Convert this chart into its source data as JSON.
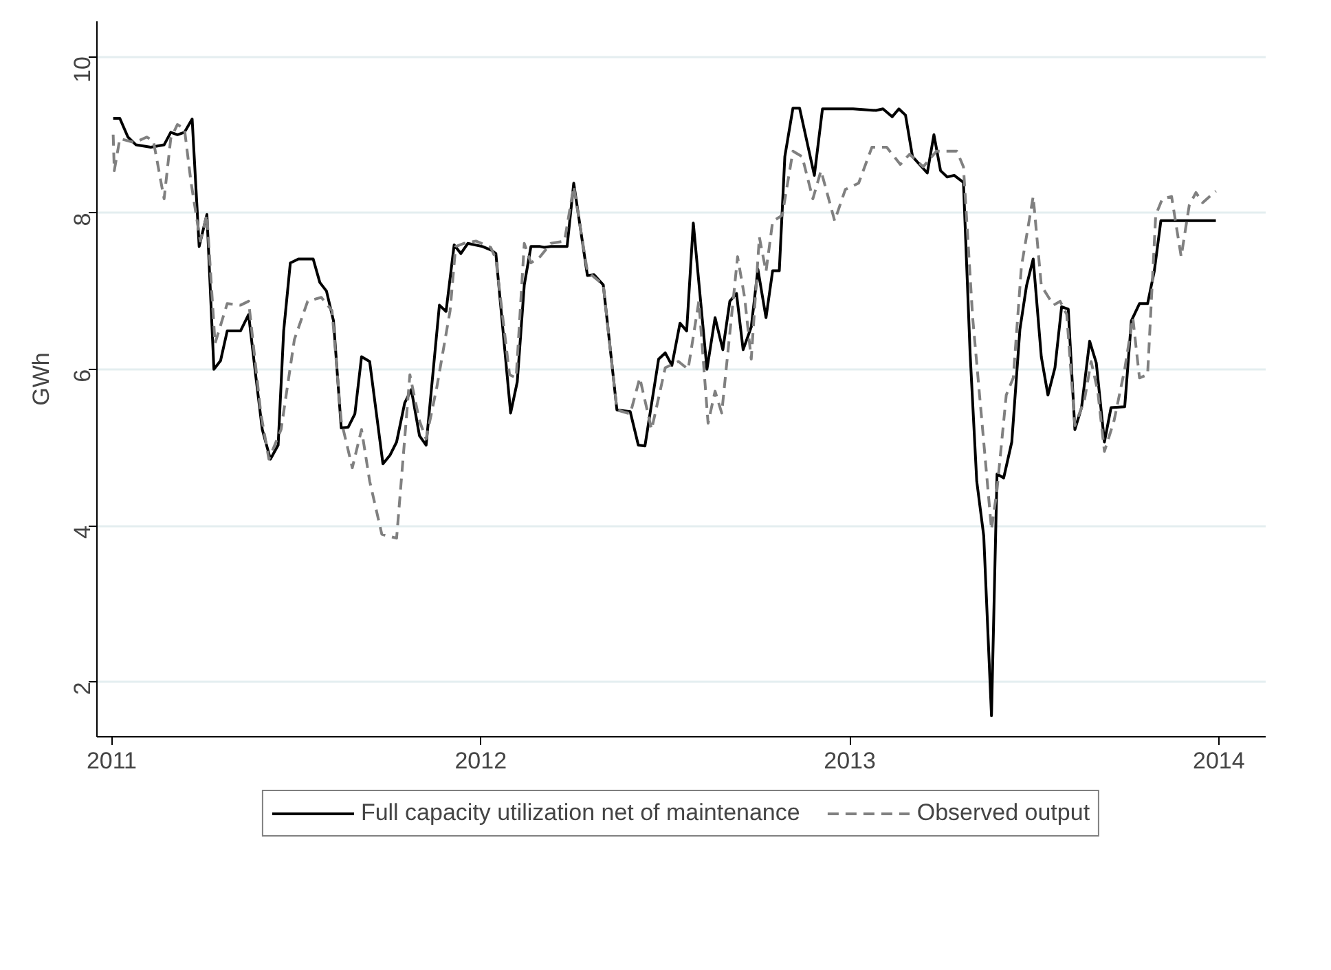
{
  "chart_data": {
    "type": "line",
    "ylabel": "GWh",
    "xlim": [
      2010.96,
      2014.127
    ],
    "ylim": [
      1.3,
      10.45
    ],
    "xticks": [
      2011,
      2012,
      2013,
      2014
    ],
    "yticks": [
      2,
      4,
      6,
      8,
      10
    ],
    "grid": "y",
    "legend": "bottom",
    "marker": "none",
    "series": [
      {
        "name": "Full capacity utilization net of maintenance",
        "color": "#000000",
        "line_style": "solid",
        "x": [
          2011.004,
          2011.022,
          2011.044,
          2011.066,
          2011.106,
          2011.142,
          2011.16,
          2011.178,
          2011.197,
          2011.218,
          2011.237,
          2011.258,
          2011.277,
          2011.295,
          2011.313,
          2011.349,
          2011.371,
          2011.39,
          2011.408,
          2011.43,
          2011.451,
          2011.466,
          2011.484,
          2011.506,
          2011.546,
          2011.564,
          2011.582,
          2011.601,
          2011.622,
          2011.641,
          2011.659,
          2011.677,
          2011.699,
          2011.735,
          2011.754,
          2011.772,
          2011.794,
          2011.812,
          2011.834,
          2011.852,
          2011.888,
          2011.906,
          2011.928,
          2011.946,
          2011.965,
          2012.005,
          2012.03,
          2012.041,
          2012.081,
          2012.099,
          2012.118,
          2012.136,
          2012.161,
          2012.172,
          2012.19,
          2012.234,
          2012.252,
          2012.289,
          2012.307,
          2012.332,
          2012.369,
          2012.405,
          2012.427,
          2012.445,
          2012.482,
          2012.5,
          2012.518,
          2012.54,
          2012.558,
          2012.576,
          2012.613,
          2012.635,
          2012.656,
          2012.675,
          2012.693,
          2012.711,
          2012.733,
          2012.751,
          2012.773,
          2012.791,
          2012.809,
          2012.824,
          2012.846,
          2012.864,
          2012.904,
          2012.926,
          2013.009,
          2013.071,
          2013.09,
          2013.115,
          2013.133,
          2013.151,
          2013.17,
          2013.21,
          2013.228,
          2013.246,
          2013.264,
          2013.283,
          2013.308,
          2013.326,
          2013.344,
          2013.363,
          2013.384,
          2013.399,
          2013.417,
          2013.439,
          2013.461,
          2013.479,
          2013.497,
          2013.519,
          2013.537,
          2013.556,
          2013.574,
          2013.592,
          2013.61,
          2013.628,
          2013.65,
          2013.668,
          2013.69,
          2013.708,
          2013.745,
          2013.763,
          2013.785,
          2013.807,
          2013.825,
          2013.843,
          2013.92,
          2013.992
        ],
        "values": [
          9.21,
          9.21,
          8.97,
          8.87,
          8.84,
          8.87,
          9.03,
          9.0,
          9.03,
          9.2,
          7.57,
          7.98,
          6.0,
          6.11,
          6.49,
          6.49,
          6.7,
          5.93,
          5.23,
          4.85,
          5.03,
          6.49,
          7.36,
          7.41,
          7.41,
          7.11,
          7.0,
          6.62,
          5.25,
          5.26,
          5.43,
          6.16,
          6.1,
          4.79,
          4.9,
          5.07,
          5.57,
          5.74,
          5.15,
          5.03,
          6.82,
          6.74,
          7.59,
          7.48,
          7.61,
          7.57,
          7.52,
          7.48,
          5.44,
          5.84,
          7.08,
          7.57,
          7.57,
          7.56,
          7.57,
          7.57,
          8.38,
          7.2,
          7.21,
          7.08,
          5.48,
          5.46,
          5.03,
          5.02,
          6.13,
          6.21,
          6.05,
          6.59,
          6.49,
          7.87,
          6.0,
          6.66,
          6.25,
          6.87,
          6.97,
          6.25,
          6.54,
          7.28,
          6.66,
          7.26,
          7.26,
          8.72,
          9.34,
          9.34,
          8.48,
          9.33,
          9.33,
          9.31,
          9.33,
          9.23,
          9.33,
          9.25,
          8.72,
          8.51,
          9.0,
          8.54,
          8.46,
          8.48,
          8.39,
          6.21,
          4.57,
          3.87,
          1.57,
          4.66,
          4.61,
          5.07,
          6.51,
          7.07,
          7.41,
          6.16,
          5.67,
          6.02,
          6.8,
          6.77,
          5.23,
          5.51,
          6.36,
          6.08,
          5.07,
          5.51,
          5.52,
          6.62,
          6.84,
          6.84,
          7.25,
          7.9,
          7.9,
          7.9
        ]
      },
      {
        "name": "Observed output",
        "color": "#808080",
        "line_style": "dashed",
        "x": [
          2011.004,
          2011.007,
          2011.022,
          2011.062,
          2011.095,
          2011.113,
          2011.142,
          2011.16,
          2011.178,
          2011.197,
          2011.215,
          2011.24,
          2011.258,
          2011.28,
          2011.313,
          2011.349,
          2011.371,
          2011.404,
          2011.426,
          2011.459,
          2011.495,
          2011.531,
          2011.568,
          2011.597,
          2011.622,
          2011.652,
          2011.677,
          2011.699,
          2011.732,
          2011.772,
          2011.808,
          2011.834,
          2011.852,
          2011.881,
          2011.917,
          2011.932,
          2011.954,
          2011.987,
          2012.027,
          2012.041,
          2012.078,
          2012.096,
          2012.118,
          2012.136,
          2012.161,
          2012.19,
          2012.227,
          2012.252,
          2012.289,
          2012.332,
          2012.369,
          2012.405,
          2012.431,
          2012.463,
          2012.5,
          2012.536,
          2012.562,
          2012.591,
          2012.616,
          2012.635,
          2012.653,
          2012.696,
          2012.715,
          2012.733,
          2012.755,
          2012.773,
          2012.791,
          2012.817,
          2012.846,
          2012.871,
          2012.9,
          2012.922,
          2012.959,
          2012.988,
          2013.024,
          2013.06,
          2013.1,
          2013.137,
          2013.162,
          2013.199,
          2013.235,
          2013.29,
          2013.308,
          2013.333,
          2013.363,
          2013.384,
          2013.399,
          2013.424,
          2013.443,
          2013.465,
          2013.497,
          2013.519,
          2013.552,
          2013.57,
          2013.588,
          2013.61,
          2013.636,
          2013.654,
          2013.672,
          2013.69,
          2013.716,
          2013.745,
          2013.767,
          2013.785,
          2013.807,
          2013.829,
          2013.847,
          2013.872,
          2013.898,
          2013.92,
          2013.938,
          2013.956,
          2013.992
        ],
        "values": [
          9.0,
          8.54,
          8.95,
          8.9,
          8.97,
          8.92,
          8.18,
          8.95,
          9.13,
          9.08,
          8.39,
          7.64,
          7.98,
          6.33,
          6.84,
          6.82,
          6.87,
          5.44,
          4.85,
          5.23,
          6.38,
          6.87,
          6.92,
          6.75,
          5.34,
          4.74,
          5.23,
          4.57,
          3.89,
          3.84,
          5.93,
          5.34,
          5.11,
          5.77,
          6.75,
          7.57,
          7.61,
          7.64,
          7.56,
          7.41,
          5.93,
          5.89,
          7.61,
          7.36,
          7.44,
          7.61,
          7.64,
          8.34,
          7.25,
          7.08,
          5.48,
          5.43,
          5.89,
          5.23,
          6.02,
          6.1,
          6.0,
          6.87,
          5.31,
          5.72,
          5.44,
          7.44,
          6.92,
          6.13,
          7.69,
          7.25,
          7.89,
          7.97,
          8.79,
          8.72,
          8.18,
          8.54,
          7.9,
          8.3,
          8.38,
          8.84,
          8.84,
          8.62,
          8.75,
          8.59,
          8.79,
          8.79,
          8.59,
          6.66,
          5.07,
          3.95,
          4.46,
          5.67,
          5.89,
          7.31,
          8.21,
          7.07,
          6.82,
          6.87,
          6.7,
          5.28,
          5.61,
          6.1,
          5.72,
          4.95,
          5.34,
          6.0,
          6.66,
          5.89,
          5.93,
          7.97,
          8.18,
          8.21,
          7.44,
          8.1,
          8.26,
          8.13,
          8.28
        ]
      }
    ]
  }
}
